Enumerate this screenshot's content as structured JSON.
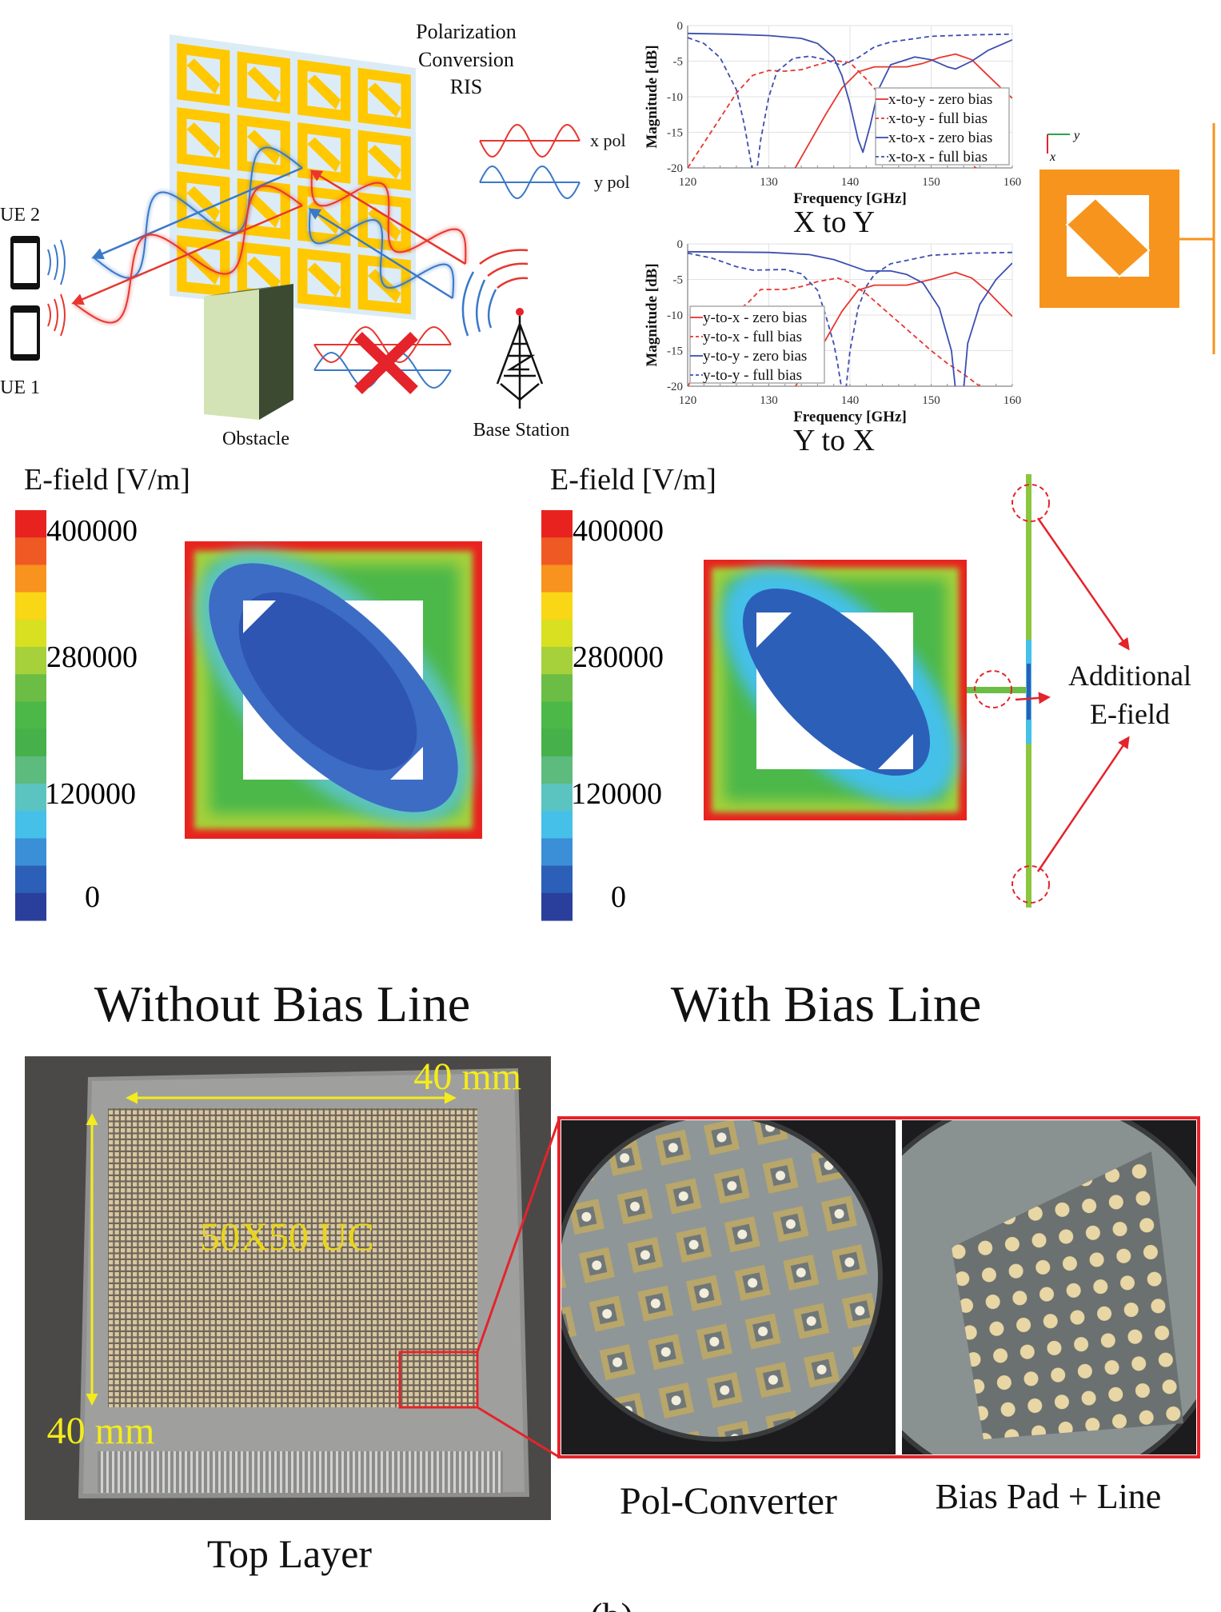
{
  "scenario": {
    "ris_title": [
      "Polarization",
      "Conversion",
      "RIS"
    ],
    "x_pol_label": "x pol",
    "y_pol_label": "y pol",
    "ue2_label": "UE 2",
    "ue1_label": "UE 1",
    "obstacle_label": "Obstacle",
    "base_station_label": "Base Station",
    "colors": {
      "x_pol": "#e8362f",
      "y_pol": "#3a78c9",
      "ris_tile": "#ffc800",
      "blocked": "#e5232a"
    }
  },
  "unit_cell": {
    "axis_y": "y",
    "axis_x": "x",
    "color": "#f7941d"
  },
  "efield": {
    "colorbar_title": "E-field [V/m]",
    "colorbar_ticks": [
      "400000",
      "280000",
      "120000",
      "0"
    ],
    "colorbar_colors": [
      "#e8231f",
      "#ef5a24",
      "#f7931e",
      "#f9d616",
      "#d8e021",
      "#a6d13a",
      "#6cbd45",
      "#4cb848",
      "#46b04a",
      "#5dbb7d",
      "#5cc4c0",
      "#45c0e8",
      "#3b8fd6",
      "#2c5fb8",
      "#2a3f9c"
    ],
    "panel_left_caption": "Without Bias Line",
    "panel_right_caption": "With Bias Line",
    "annotation": [
      "Additional",
      "E-field"
    ]
  },
  "photo": {
    "width_label": "40 mm",
    "height_label": "40 mm",
    "array_label": "50X50 UC",
    "caption_top_layer": "Top Layer",
    "caption_pol_converter": "Pol-Converter",
    "caption_bias": "Bias Pad + Line",
    "figure_label": "(b)"
  },
  "chart_data": [
    {
      "type": "line",
      "title": "X to Y",
      "xlabel": "Frequency [GHz]",
      "ylabel": "Magnitude [dB]",
      "xlim": [
        120,
        160
      ],
      "ylim": [
        -20,
        0
      ],
      "xticks": [
        "120",
        "130",
        "140",
        "150",
        "160"
      ],
      "yticks": [
        "0",
        "-5",
        "-10",
        "-15",
        "-20"
      ],
      "grid": true,
      "legend_position": "bottom-right",
      "series": [
        {
          "name": "x-to-y - zero bias",
          "color": "#e8362f",
          "dash": false,
          "x": [
            133,
            135,
            137,
            139,
            141,
            143,
            145,
            147,
            149,
            151,
            153,
            155,
            157,
            159,
            160
          ],
          "y": [
            -20.5,
            -16.5,
            -12.5,
            -8.8,
            -6.5,
            -5.8,
            -5.8,
            -5.8,
            -5.3,
            -4.5,
            -4.0,
            -4.8,
            -7.0,
            -9.2,
            -10.2
          ]
        },
        {
          "name": "x-to-y - full bias",
          "color": "#e8362f",
          "dash": true,
          "x": [
            120,
            122,
            124,
            126,
            128,
            130,
            132,
            134,
            136,
            138,
            140,
            142,
            143.5,
            146,
            150,
            153,
            155,
            156
          ],
          "y": [
            -20,
            -16.5,
            -13,
            -9.5,
            -7,
            -6.3,
            -6.4,
            -6.2,
            -5.5,
            -4.9,
            -5.2,
            -7.5,
            -9.5,
            -12,
            -16,
            -18.5,
            -19.5,
            -20.5
          ]
        },
        {
          "name": "x-to-x - zero bias",
          "color": "#3b4fb0",
          "dash": false,
          "x": [
            120,
            125,
            130,
            134,
            136,
            138,
            139,
            140,
            141,
            141.6,
            142.5,
            143.5,
            145,
            148,
            150,
            152,
            153,
            155,
            157,
            160
          ],
          "y": [
            -1.1,
            -1.2,
            -1.4,
            -1.8,
            -2.5,
            -4.5,
            -7,
            -11,
            -16,
            -17.8,
            -14,
            -9,
            -5.5,
            -4.4,
            -4.8,
            -5.8,
            -6.1,
            -5,
            -3.5,
            -2
          ]
        },
        {
          "name": "x-to-x - full bias",
          "color": "#3b4fb0",
          "dash": true,
          "x": [
            120,
            122,
            124,
            126,
            127,
            128,
            128.5,
            129,
            130,
            131,
            133,
            135,
            137,
            139,
            141,
            143,
            145,
            150,
            155,
            160
          ],
          "y": [
            -1.7,
            -2.5,
            -4.5,
            -9,
            -14,
            -20.5,
            -20.5,
            -16,
            -10,
            -6.5,
            -4.6,
            -4.3,
            -4.8,
            -5.6,
            -4.5,
            -3,
            -2.3,
            -1.5,
            -1.3,
            -1.2
          ]
        }
      ]
    },
    {
      "type": "line",
      "title": "Y to X",
      "xlabel": "Frequency [GHz]",
      "ylabel": "Magnitude [dB]",
      "xlim": [
        120,
        160
      ],
      "ylim": [
        -20,
        0
      ],
      "xticks": [
        "120",
        "130",
        "140",
        "150",
        "160"
      ],
      "yticks": [
        "0",
        "-5",
        "-10",
        "-15",
        "-20"
      ],
      "grid": true,
      "legend_position": "bottom-left",
      "series": [
        {
          "name": "y-to-x - zero bias",
          "color": "#e8362f",
          "dash": false,
          "x": [
            133,
            135,
            137,
            139,
            141,
            143,
            147,
            150,
            153,
            155,
            157,
            160
          ],
          "y": [
            -20.5,
            -17,
            -13.5,
            -9.5,
            -6.5,
            -5.8,
            -5.8,
            -5,
            -4,
            -4.8,
            -6.7,
            -10.2
          ]
        },
        {
          "name": "y-to-x - full bias",
          "color": "#e8362f",
          "dash": true,
          "x": [
            120,
            124,
            126,
            127.4,
            129,
            132,
            134,
            136,
            138.5,
            140,
            142,
            144,
            146,
            148,
            150,
            152,
            154,
            156
          ],
          "y": [
            -20,
            -13,
            -9.5,
            -8.3,
            -6.4,
            -6.4,
            -6,
            -5.3,
            -4.8,
            -5.5,
            -7,
            -9,
            -11,
            -13,
            -15,
            -16.8,
            -18.3,
            -20
          ]
        },
        {
          "name": "y-to-y - zero bias",
          "color": "#3b4fb0",
          "dash": false,
          "x": [
            120,
            130,
            135,
            138,
            140,
            142,
            145,
            147,
            149,
            151,
            152.5,
            153,
            154,
            154.5,
            156,
            158,
            160
          ],
          "y": [
            -1.1,
            -1.2,
            -1.5,
            -2.2,
            -3,
            -3.8,
            -3.8,
            -4.3,
            -5.5,
            -9,
            -15,
            -20.5,
            -20.5,
            -14,
            -8.5,
            -5,
            -2.7
          ]
        },
        {
          "name": "y-to-y - full bias",
          "color": "#3b4fb0",
          "dash": true,
          "x": [
            120,
            123,
            126,
            128,
            132,
            134,
            136,
            137,
            138,
            138.5,
            139,
            139.5,
            140,
            141,
            142,
            143,
            145,
            150,
            155,
            160
          ],
          "y": [
            -1.3,
            -2,
            -3.2,
            -3.7,
            -3.6,
            -4.2,
            -6.5,
            -10,
            -14,
            -17,
            -20.5,
            -20.5,
            -15,
            -9,
            -6,
            -4.3,
            -2.8,
            -1.6,
            -1.3,
            -1.2
          ]
        }
      ]
    }
  ]
}
